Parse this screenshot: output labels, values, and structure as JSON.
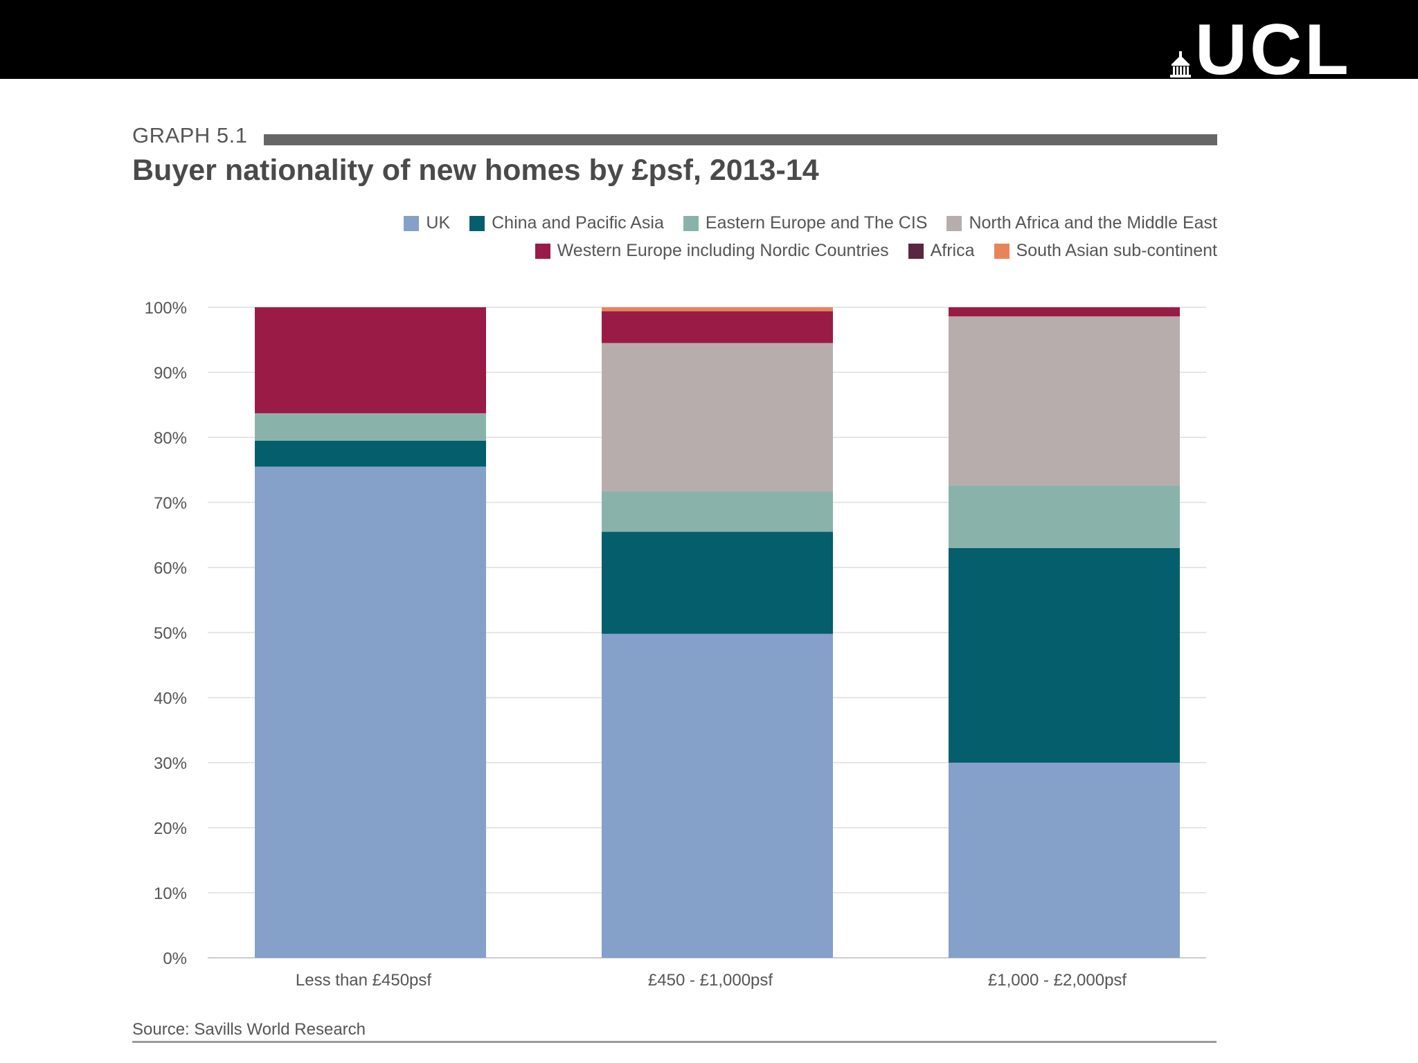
{
  "header": {
    "logo_text": "UCL",
    "logo_icon": "portico-icon"
  },
  "graph": {
    "label": "GRAPH 5.1",
    "title": "Buyer nationality of new homes by £psf, 2013-14",
    "source": "Source: Savills World Research"
  },
  "chart_data": {
    "type": "bar",
    "stacked": true,
    "title": "Buyer nationality of new homes by £psf, 2013-14",
    "xlabel": "",
    "ylabel": "",
    "ylim": [
      0,
      100
    ],
    "yticks": [
      "0%",
      "10%",
      "20%",
      "30%",
      "40%",
      "50%",
      "60%",
      "70%",
      "80%",
      "90%",
      "100%"
    ],
    "grid": true,
    "legend_position": "top-right",
    "categories": [
      "Less than £450psf",
      "£450 - £1,000psf",
      "£1,000 - £2,000psf"
    ],
    "series": [
      {
        "name": "UK",
        "color": "#85a0c9",
        "values": [
          75.5,
          49.8,
          30.0
        ]
      },
      {
        "name": "China and Pacific Asia",
        "color": "#045e6b",
        "values": [
          4.0,
          15.7,
          33.0
        ]
      },
      {
        "name": "Eastern Europe and The CIS",
        "color": "#89b3aa",
        "values": [
          4.2,
          6.2,
          9.6
        ]
      },
      {
        "name": "North Africa and the Middle East",
        "color": "#b8adad",
        "values": [
          0.0,
          22.8,
          26.0
        ]
      },
      {
        "name": "Western Europe including Nordic Countries",
        "color": "#9b1b47",
        "values": [
          16.3,
          4.9,
          1.4
        ]
      },
      {
        "name": "Africa",
        "color": "#5a2742",
        "values": [
          0.0,
          0.0,
          0.0
        ]
      },
      {
        "name": "South Asian sub-continent",
        "color": "#e8845a",
        "values": [
          0.0,
          0.6,
          0.0
        ]
      }
    ]
  }
}
